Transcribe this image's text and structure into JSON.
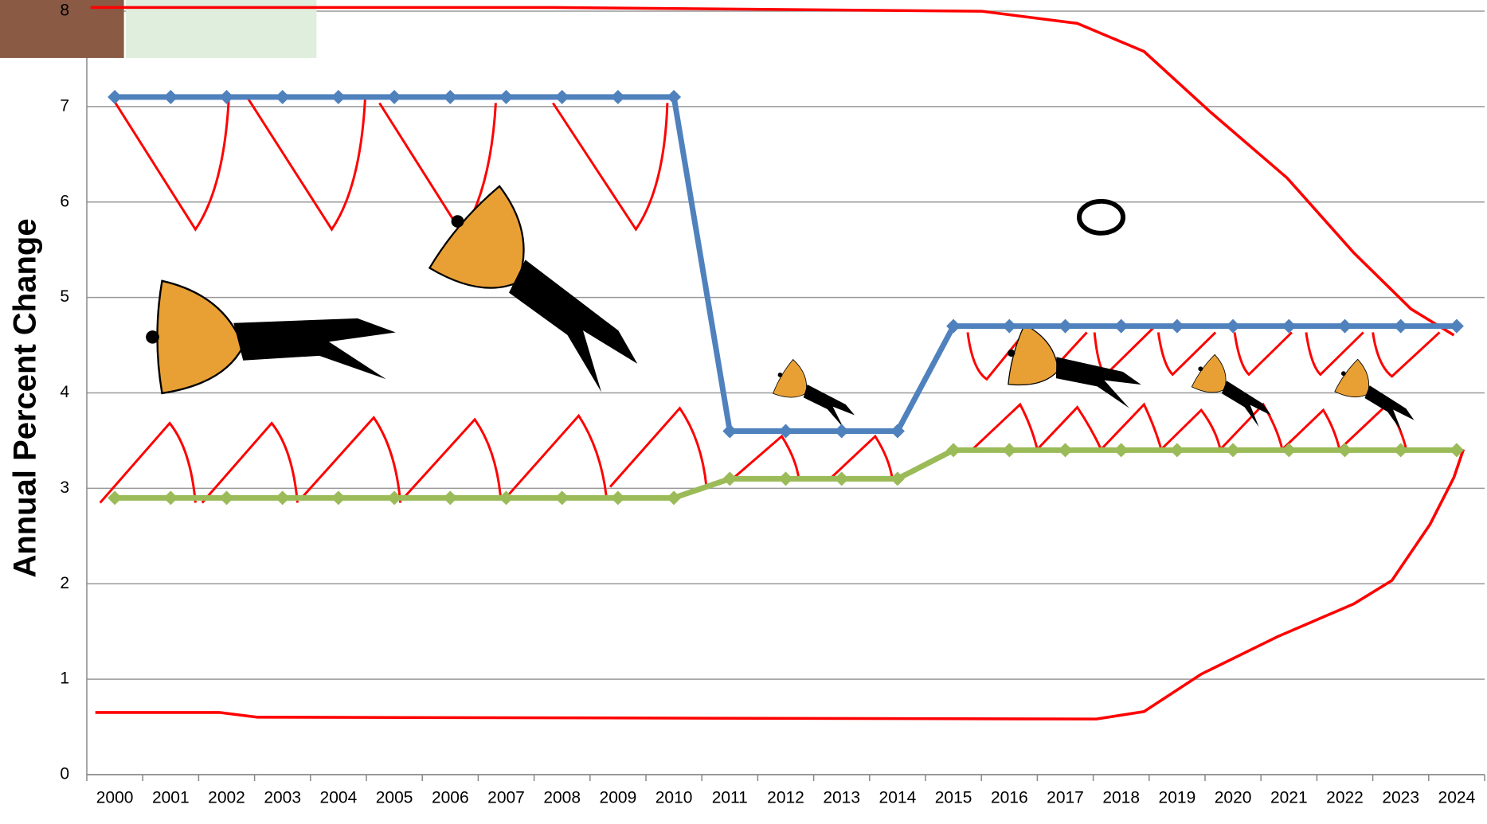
{
  "chart_data": {
    "type": "line",
    "y_label": "Annual Percent Change",
    "categories": [
      "2000",
      "2001",
      "2002",
      "2003",
      "2004",
      "2005",
      "2006",
      "2007",
      "2008",
      "2009",
      "2010",
      "2011",
      "2012",
      "2013",
      "2014",
      "2015",
      "2016",
      "2017",
      "2018",
      "2019",
      "2020",
      "2021",
      "2022",
      "2023",
      "2024"
    ],
    "series": [
      {
        "color": "#4f81bd",
        "values": [
          7.1,
          7.1,
          7.1,
          7.1,
          7.1,
          7.1,
          7.1,
          7.1,
          7.1,
          7.1,
          7.1,
          3.6,
          3.6,
          3.6,
          3.6,
          4.7,
          4.7,
          4.7,
          4.7,
          4.7,
          4.7,
          4.7,
          4.7,
          4.7,
          4.7
        ]
      },
      {
        "color": "#9bbb59",
        "values": [
          2.9,
          2.9,
          2.9,
          2.9,
          2.9,
          2.9,
          2.9,
          2.9,
          2.9,
          2.9,
          2.9,
          3.1,
          3.1,
          3.1,
          3.1,
          3.4,
          3.4,
          3.4,
          3.4,
          3.4,
          3.4,
          3.4,
          3.4,
          3.4,
          3.4
        ]
      }
    ],
    "ylim": [
      0,
      8
    ],
    "yticks": [
      0,
      1,
      2,
      3,
      4,
      5,
      6,
      7,
      8
    ],
    "grid": true
  }
}
